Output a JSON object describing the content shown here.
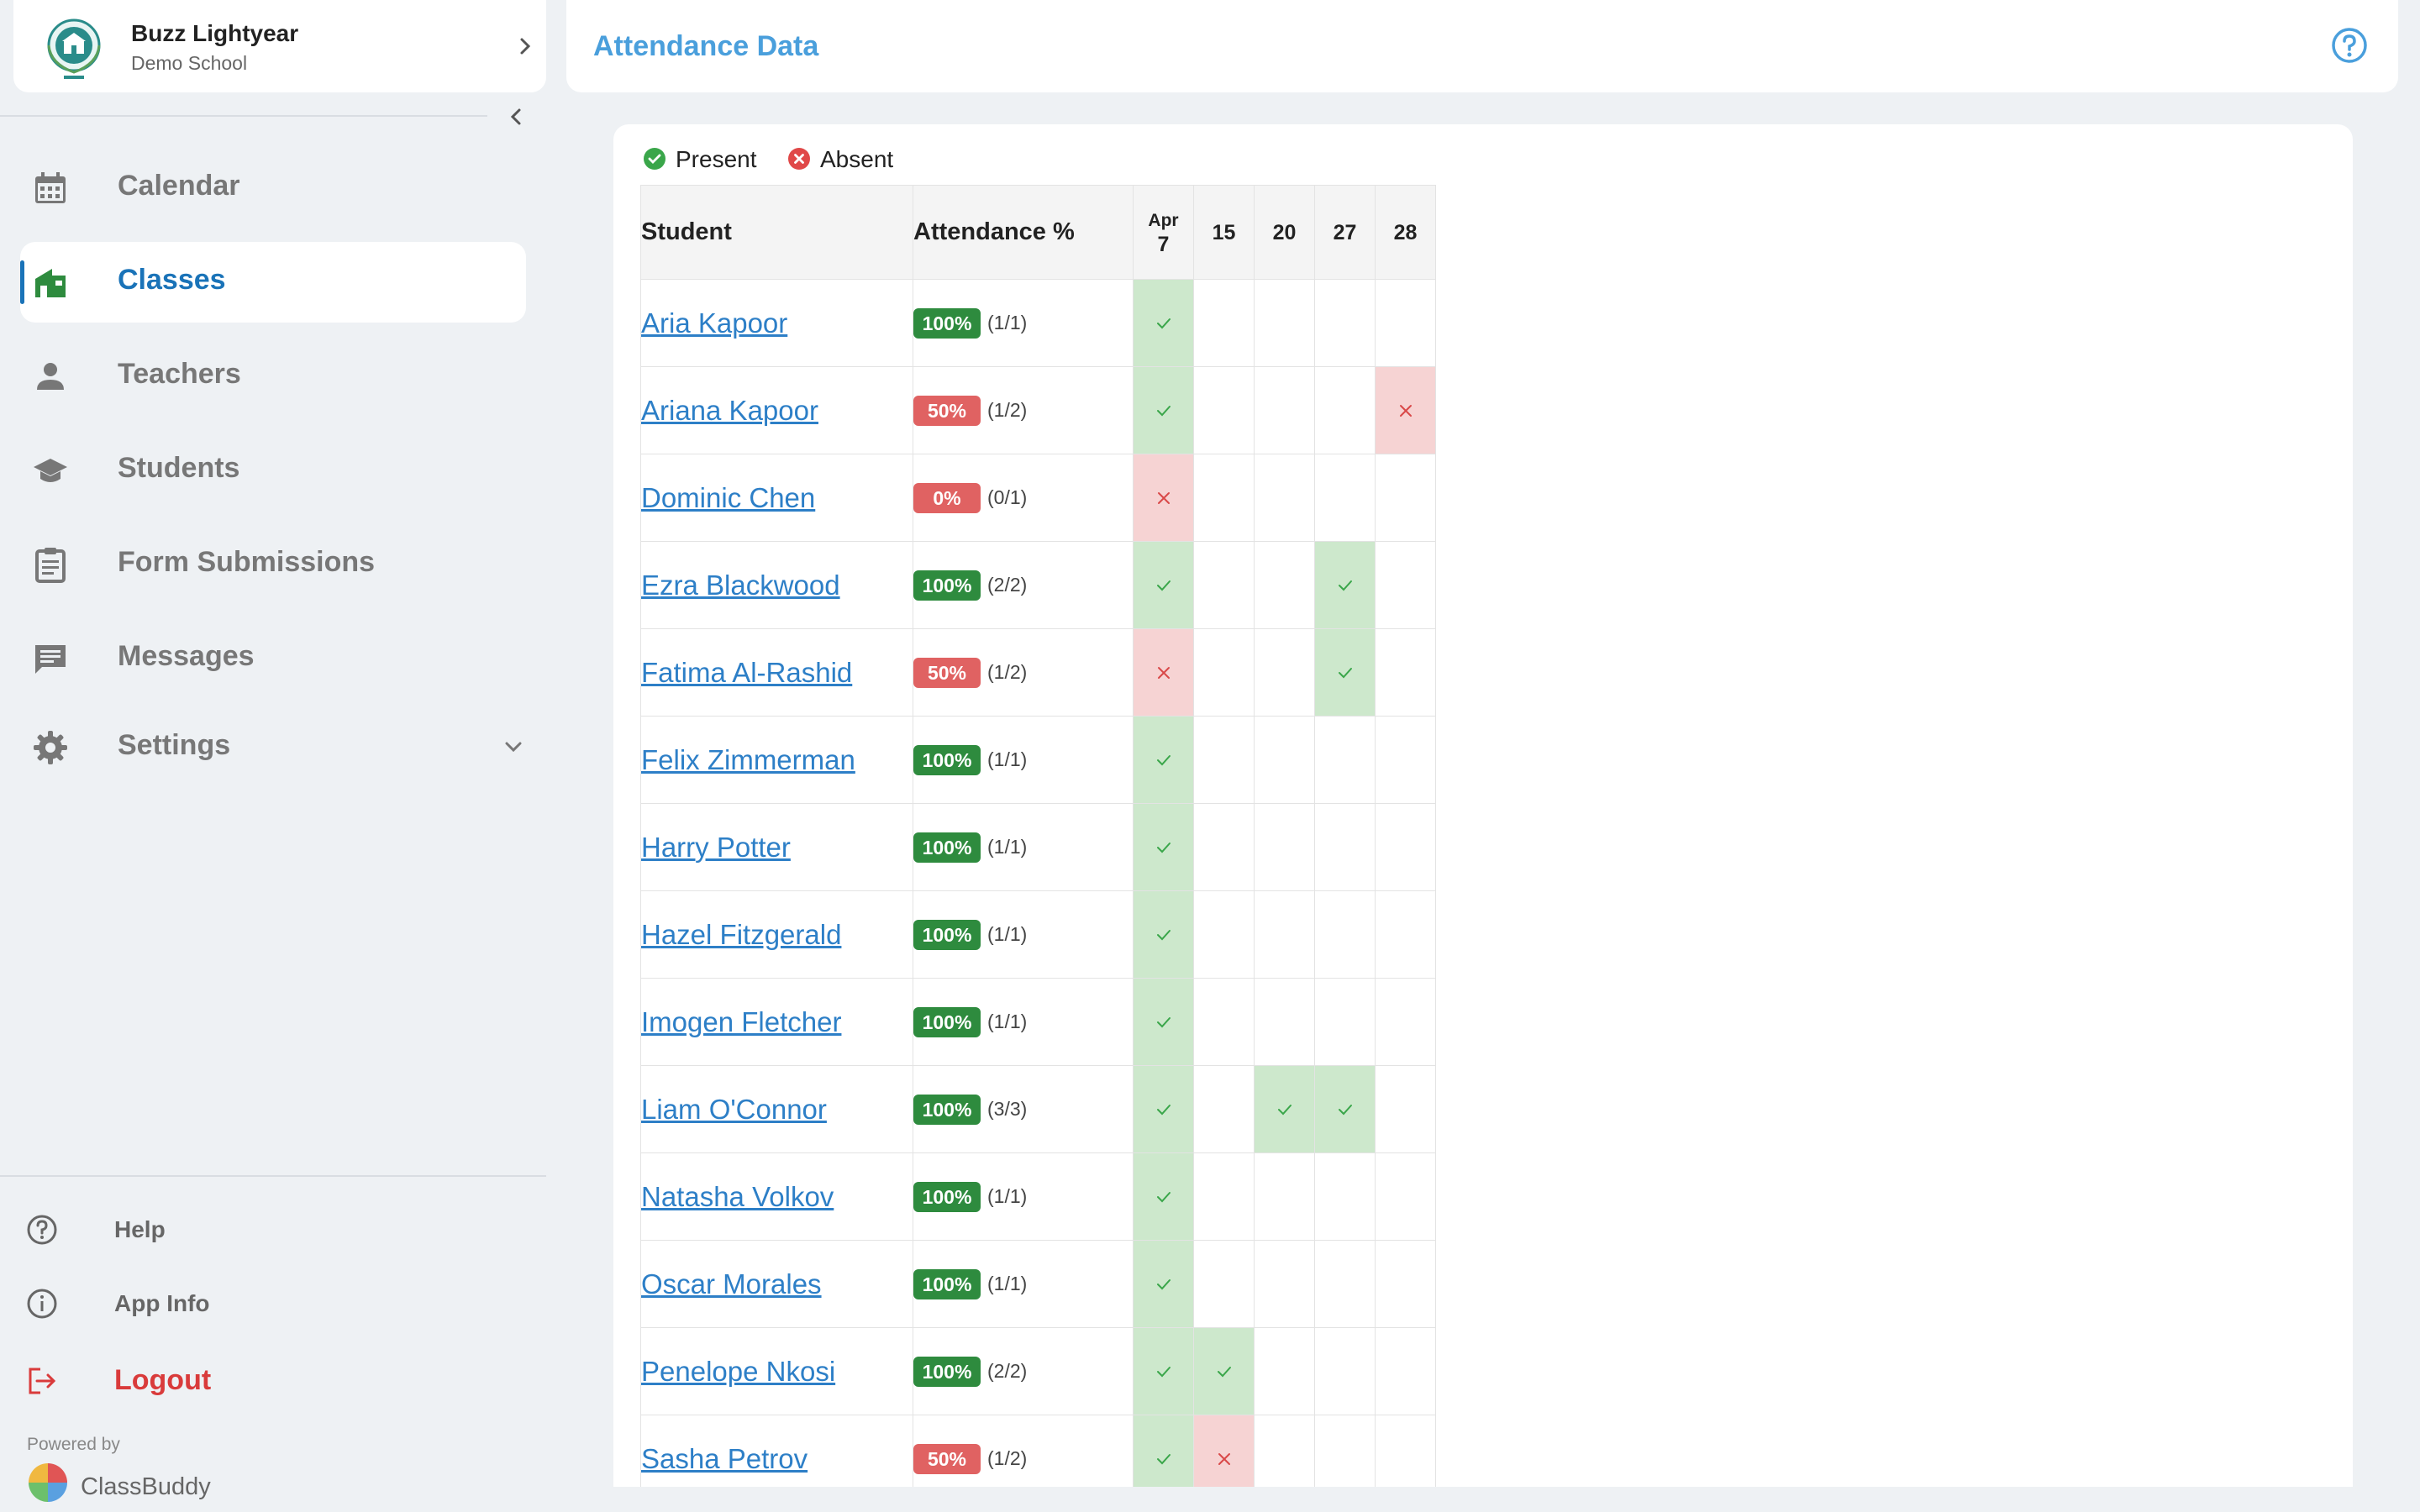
{
  "profile": {
    "name": "Buzz Lightyear",
    "school": "Demo School"
  },
  "nav": [
    {
      "key": "calendar",
      "label": "Calendar",
      "icon": "calendar-icon",
      "active": false
    },
    {
      "key": "classes",
      "label": "Classes",
      "icon": "classes-icon",
      "active": true
    },
    {
      "key": "teachers",
      "label": "Teachers",
      "icon": "person-icon",
      "active": false
    },
    {
      "key": "students",
      "label": "Students",
      "icon": "graduation-cap-icon",
      "active": false
    },
    {
      "key": "form-submissions",
      "label": "Form Submissions",
      "icon": "clipboard-icon",
      "active": false
    },
    {
      "key": "messages",
      "label": "Messages",
      "icon": "chat-icon",
      "active": false
    },
    {
      "key": "settings",
      "label": "Settings",
      "icon": "gear-icon",
      "active": false
    }
  ],
  "bottom_nav": {
    "help": "Help",
    "app_info": "App Info",
    "logout": "Logout"
  },
  "powered_by": "Powered by",
  "brand": "ClassBuddy",
  "header": {
    "title": "Attendance Data"
  },
  "legend": {
    "present": "Present",
    "absent": "Absent"
  },
  "table": {
    "col_student": "Student",
    "col_pct": "Attendance %",
    "dates": [
      {
        "month": "Apr",
        "day": "7"
      },
      {
        "month": "",
        "day": "15"
      },
      {
        "month": "",
        "day": "20"
      },
      {
        "month": "",
        "day": "27"
      },
      {
        "month": "",
        "day": "28"
      }
    ],
    "rows": [
      {
        "name": "Aria Kapoor",
        "pct": "100%",
        "ratio": "(1/1)",
        "status": "good",
        "cells": [
          "P",
          "",
          "",
          "",
          ""
        ]
      },
      {
        "name": "Ariana Kapoor",
        "pct": "50%",
        "ratio": "(1/2)",
        "status": "bad",
        "cells": [
          "P",
          "",
          "",
          "",
          "A"
        ]
      },
      {
        "name": "Dominic Chen",
        "pct": "0%",
        "ratio": "(0/1)",
        "status": "bad",
        "cells": [
          "A",
          "",
          "",
          "",
          ""
        ]
      },
      {
        "name": "Ezra Blackwood",
        "pct": "100%",
        "ratio": "(2/2)",
        "status": "good",
        "cells": [
          "P",
          "",
          "",
          "P",
          ""
        ]
      },
      {
        "name": "Fatima Al-Rashid",
        "pct": "50%",
        "ratio": "(1/2)",
        "status": "bad",
        "cells": [
          "A",
          "",
          "",
          "P",
          ""
        ]
      },
      {
        "name": "Felix Zimmerman",
        "pct": "100%",
        "ratio": "(1/1)",
        "status": "good",
        "cells": [
          "P",
          "",
          "",
          "",
          ""
        ]
      },
      {
        "name": "Harry Potter",
        "pct": "100%",
        "ratio": "(1/1)",
        "status": "good",
        "cells": [
          "P",
          "",
          "",
          "",
          ""
        ]
      },
      {
        "name": "Hazel Fitzgerald",
        "pct": "100%",
        "ratio": "(1/1)",
        "status": "good",
        "cells": [
          "P",
          "",
          "",
          "",
          ""
        ]
      },
      {
        "name": "Imogen Fletcher",
        "pct": "100%",
        "ratio": "(1/1)",
        "status": "good",
        "cells": [
          "P",
          "",
          "",
          "",
          ""
        ]
      },
      {
        "name": "Liam O'Connor",
        "pct": "100%",
        "ratio": "(3/3)",
        "status": "good",
        "cells": [
          "P",
          "",
          "P",
          "P",
          ""
        ]
      },
      {
        "name": "Natasha Volkov",
        "pct": "100%",
        "ratio": "(1/1)",
        "status": "good",
        "cells": [
          "P",
          "",
          "",
          "",
          ""
        ]
      },
      {
        "name": "Oscar Morales",
        "pct": "100%",
        "ratio": "(1/1)",
        "status": "good",
        "cells": [
          "P",
          "",
          "",
          "",
          ""
        ]
      },
      {
        "name": "Penelope Nkosi",
        "pct": "100%",
        "ratio": "(2/2)",
        "status": "good",
        "cells": [
          "P",
          "P",
          "",
          "",
          ""
        ]
      },
      {
        "name": "Sasha Petrov",
        "pct": "50%",
        "ratio": "(1/2)",
        "status": "bad",
        "cells": [
          "P",
          "A",
          "",
          "",
          ""
        ]
      }
    ]
  },
  "colors": {
    "accent": "#1a73b8",
    "title": "#4a9fdc",
    "present_bg": "#cde8cc",
    "absent_bg": "#f6d3d3",
    "good_badge": "#2e8b3e",
    "bad_badge": "#e06262",
    "logout": "#d93b3b"
  }
}
